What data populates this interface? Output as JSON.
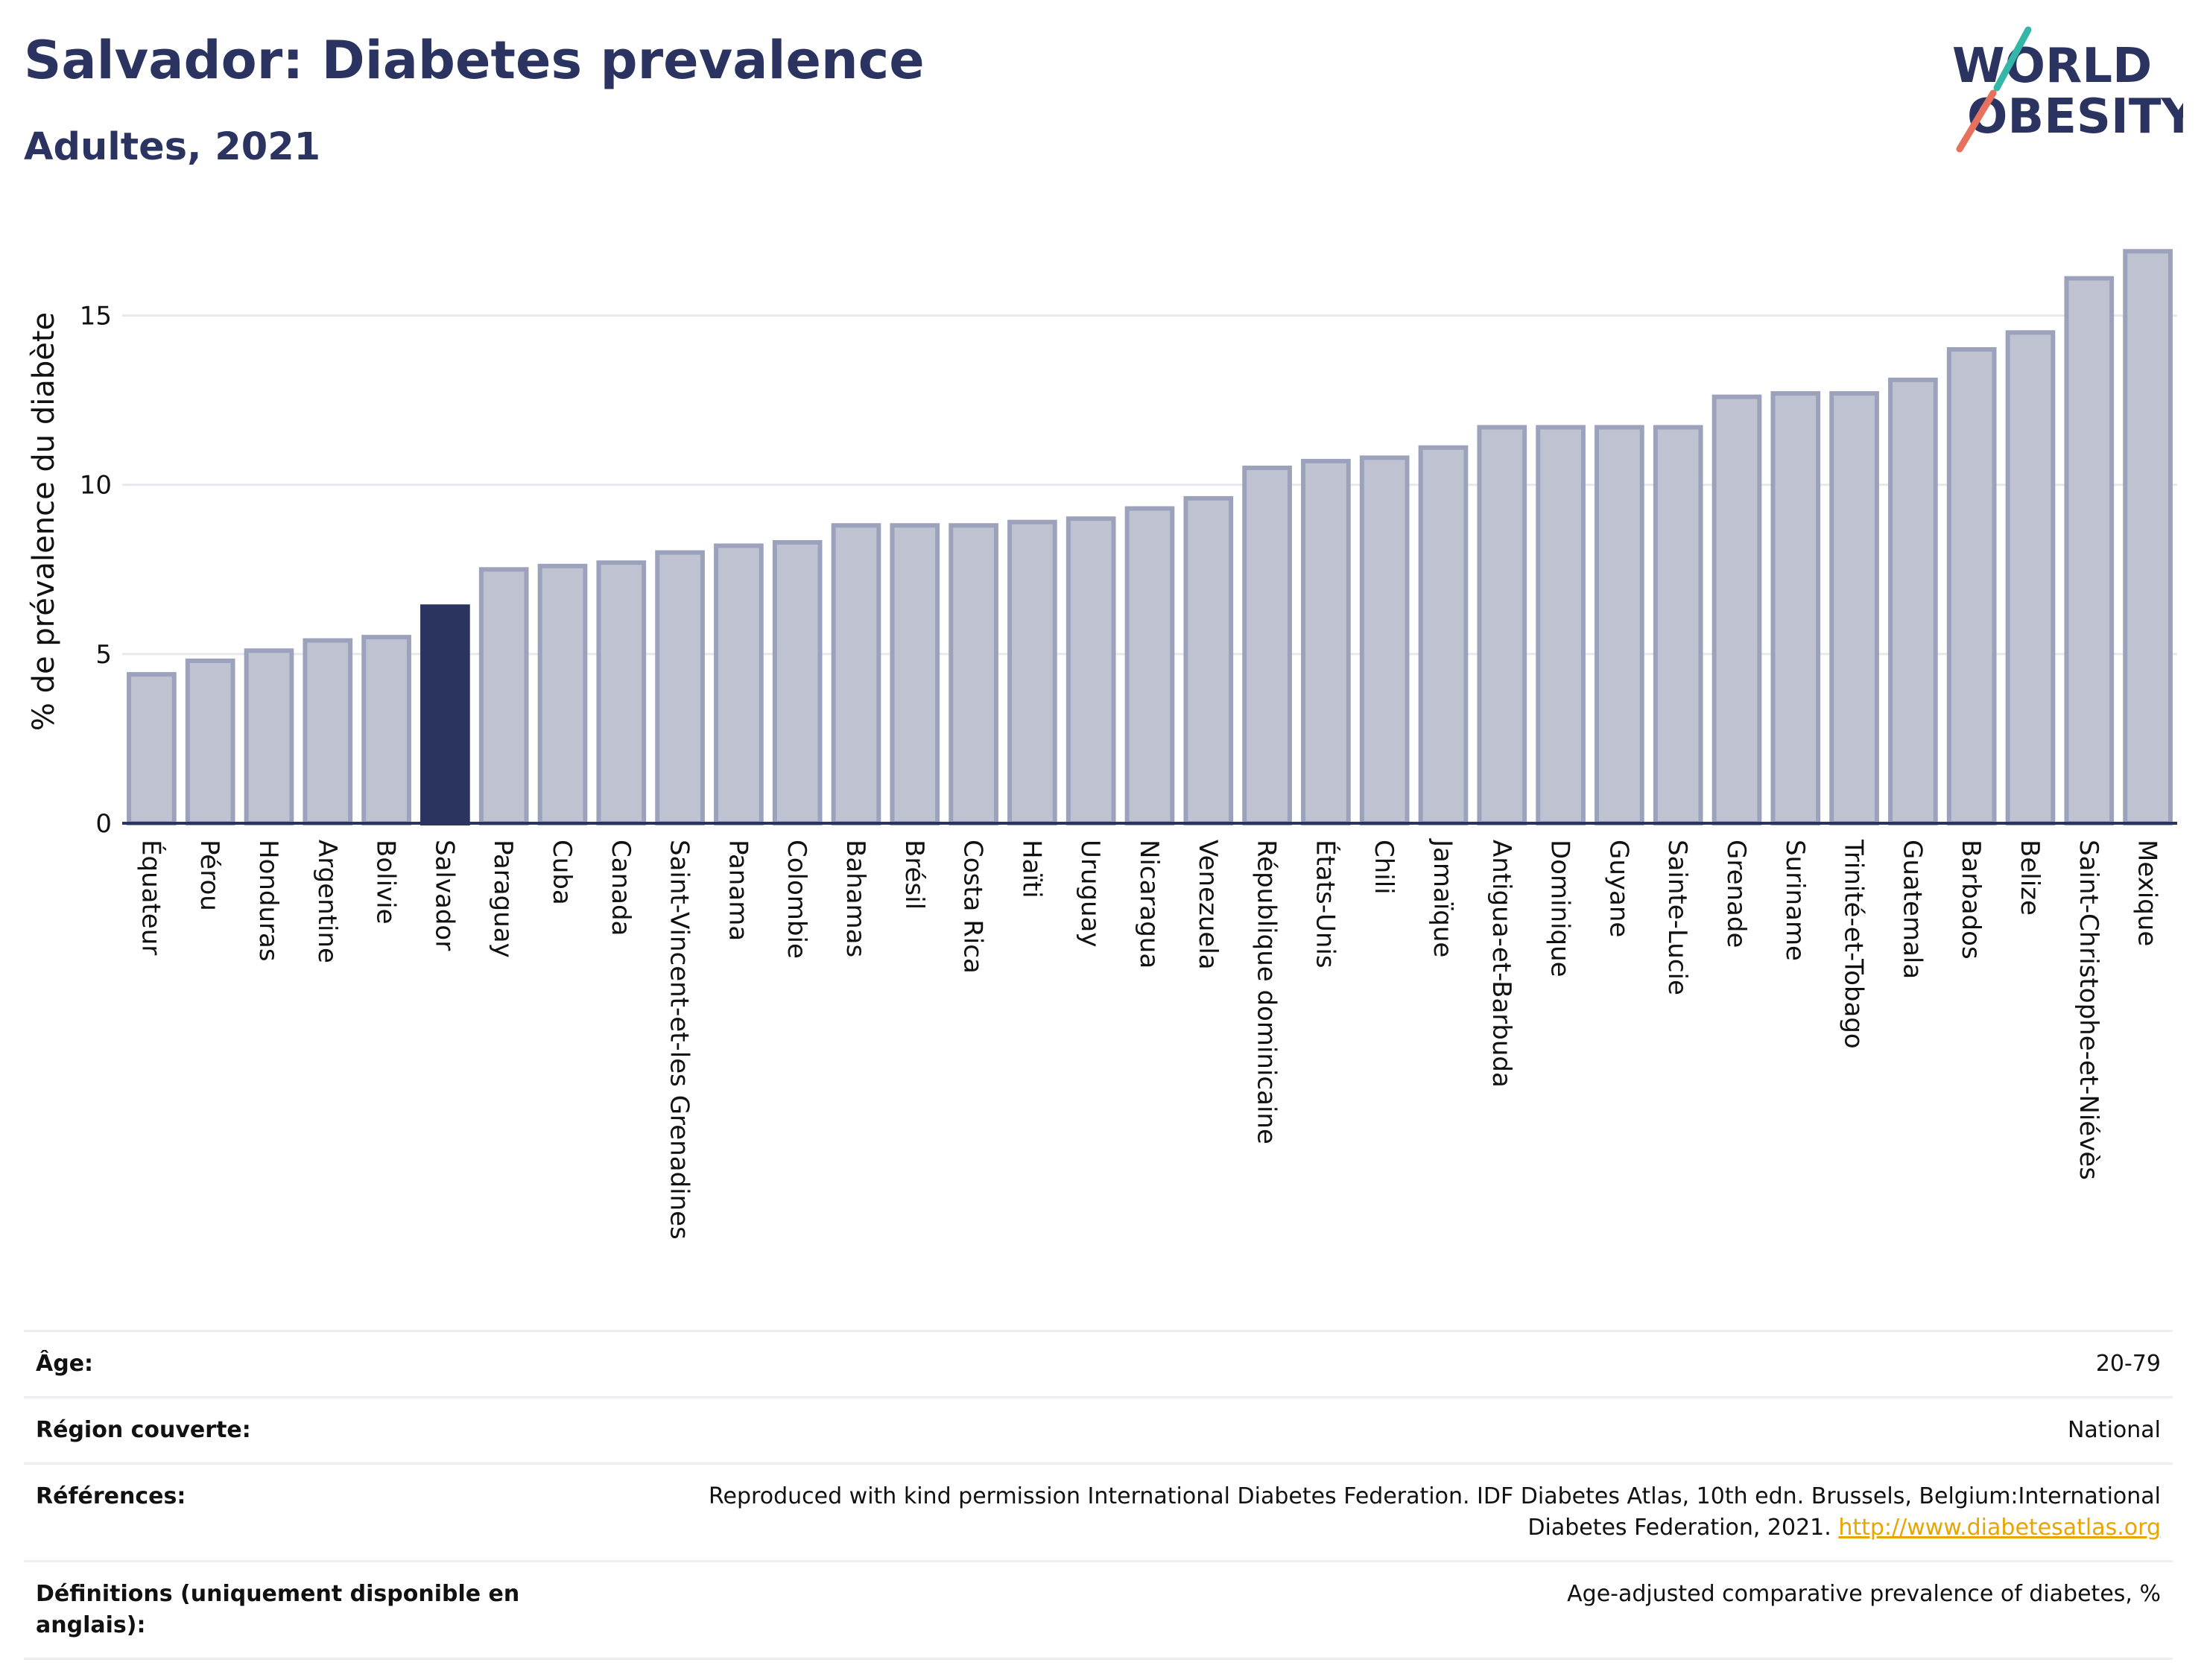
{
  "header": {
    "title": "Salvador: Diabetes prevalence",
    "subtitle": "Adultes, 2021"
  },
  "logo": {
    "line1": "WORLD",
    "line2": "OBESITY"
  },
  "colors": {
    "highlight": "#2b3461",
    "bar": "#bfc3d1",
    "bar_border": "#9ca2bb",
    "grid": "#e6e8ee"
  },
  "chart_data": {
    "type": "bar",
    "ylabel": "% de prévalence du diabète",
    "ylim": [
      0,
      17.5
    ],
    "yticks": [
      0,
      5,
      10,
      15
    ],
    "highlight": "Salvador",
    "categories": [
      "Équateur",
      "Pérou",
      "Honduras",
      "Argentine",
      "Bolivie",
      "Salvador",
      "Paraguay",
      "Cuba",
      "Canada",
      "Saint-Vincent-et-les Grenadines",
      "Panama",
      "Colombie",
      "Bahamas",
      "Brésil",
      "Costa Rica",
      "Haïti",
      "Uruguay",
      "Nicaragua",
      "Venezuela",
      "République dominicaine",
      "États-Unis",
      "Chili",
      "Jamaïque",
      "Antigua-et-Barbuda",
      "Dominique",
      "Guyane",
      "Sainte-Lucie",
      "Grenade",
      "Suriname",
      "Trinité-et-Tobago",
      "Guatemala",
      "Barbados",
      "Belize",
      "Saint-Christophe-et-Niévès",
      "Mexique"
    ],
    "values": [
      4.4,
      4.8,
      5.1,
      5.4,
      5.5,
      6.4,
      7.5,
      7.6,
      7.7,
      8.0,
      8.2,
      8.3,
      8.8,
      8.8,
      8.8,
      8.9,
      9.0,
      9.3,
      9.6,
      10.5,
      10.7,
      10.8,
      11.1,
      11.7,
      11.7,
      11.7,
      11.7,
      12.6,
      12.7,
      12.7,
      13.1,
      14.0,
      14.5,
      16.1,
      16.9
    ]
  },
  "meta": [
    {
      "key": "Âge:",
      "value": "20-79"
    },
    {
      "key": "Région couverte:",
      "value": "National"
    },
    {
      "key": "Références:",
      "value": "Reproduced with kind permission International Diabetes Federation.  IDF Diabetes Atlas, 10th edn. Brussels, Belgium:International Diabetes Federation, 2021. ",
      "link": "http://www.diabetesatlas.org"
    },
    {
      "key": "Définitions (uniquement disponible en anglais):",
      "value": "Age-adjusted comparative prevalence of diabetes, %"
    }
  ]
}
